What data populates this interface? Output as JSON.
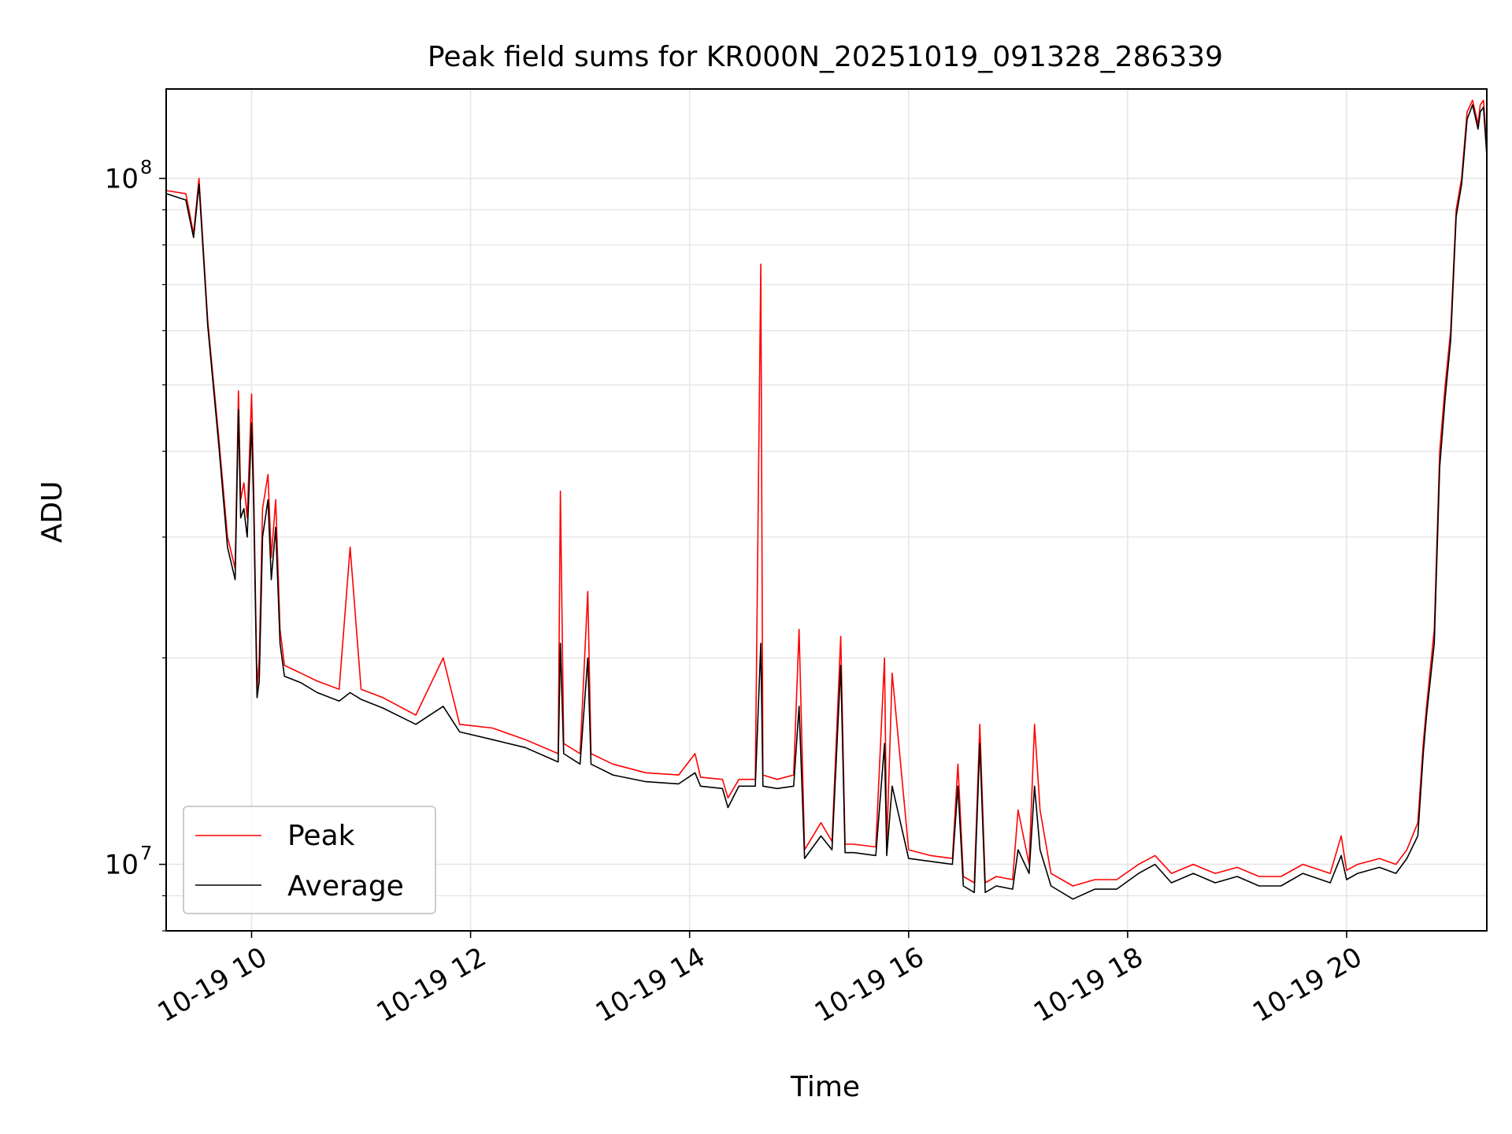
{
  "chart_data": {
    "type": "line",
    "title": "Peak field sums for KR000N_20251019_091328_286339",
    "xlabel": "Time",
    "ylabel": "ADU",
    "y_scale": "log",
    "ylim": [
      8000000,
      135000000
    ],
    "xlim_hours": [
      9.22,
      21.28
    ],
    "grid": true,
    "legend_position": "lower-left",
    "x_ticks": [
      {
        "hour": 10,
        "label": "10-19 10"
      },
      {
        "hour": 12,
        "label": "10-19 12"
      },
      {
        "hour": 14,
        "label": "10-19 14"
      },
      {
        "hour": 16,
        "label": "10-19 16"
      },
      {
        "hour": 18,
        "label": "10-19 18"
      },
      {
        "hour": 20,
        "label": "10-19 20"
      }
    ],
    "y_ticks": [
      {
        "value": 10000000,
        "base": "10",
        "exp": "7"
      },
      {
        "value": 100000000,
        "base": "10",
        "exp": "8"
      }
    ],
    "series": [
      {
        "name": "Peak",
        "color": "#ff0000",
        "x": [
          9.22,
          9.4,
          9.47,
          9.52,
          9.6,
          9.7,
          9.78,
          9.85,
          9.88,
          9.9,
          9.93,
          9.96,
          10.0,
          10.02,
          10.05,
          10.07,
          10.1,
          10.15,
          10.18,
          10.22,
          10.26,
          10.3,
          10.45,
          10.6,
          10.8,
          10.9,
          11.0,
          11.2,
          11.5,
          11.75,
          11.9,
          12.2,
          12.5,
          12.8,
          12.82,
          12.85,
          13.0,
          13.07,
          13.1,
          13.3,
          13.6,
          13.9,
          14.05,
          14.1,
          14.3,
          14.35,
          14.45,
          14.6,
          14.65,
          14.67,
          14.8,
          14.95,
          15.0,
          15.05,
          15.2,
          15.3,
          15.38,
          15.42,
          15.5,
          15.7,
          15.78,
          15.8,
          15.85,
          16.0,
          16.2,
          16.4,
          16.45,
          16.5,
          16.6,
          16.65,
          16.7,
          16.8,
          16.95,
          17.0,
          17.1,
          17.15,
          17.2,
          17.3,
          17.5,
          17.7,
          17.9,
          18.1,
          18.25,
          18.4,
          18.6,
          18.8,
          19.0,
          19.2,
          19.4,
          19.6,
          19.85,
          19.95,
          20.0,
          20.1,
          20.3,
          20.45,
          20.55,
          20.65,
          20.7,
          20.73,
          20.8,
          20.85,
          20.9,
          20.95,
          21.0,
          21.05,
          21.1,
          21.15,
          21.2,
          21.22,
          21.25,
          21.28
        ],
        "y": [
          96000000,
          95000000,
          83000000,
          100000000,
          62000000,
          42000000,
          30000000,
          27000000,
          49000000,
          34000000,
          36000000,
          32000000,
          48500000,
          35000000,
          18000000,
          20000000,
          33000000,
          37000000,
          28000000,
          34000000,
          22000000,
          19500000,
          19000000,
          18500000,
          18000000,
          29000000,
          18000000,
          17500000,
          16500000,
          20000000,
          16000000,
          15800000,
          15200000,
          14500000,
          35000000,
          15000000,
          14500000,
          25000000,
          14500000,
          14000000,
          13600000,
          13500000,
          14500000,
          13400000,
          13300000,
          12500000,
          13300000,
          13300000,
          75000000,
          13500000,
          13300000,
          13500000,
          22000000,
          10500000,
          11500000,
          10800000,
          21500000,
          10700000,
          10700000,
          10600000,
          20000000,
          10600000,
          19000000,
          10500000,
          10300000,
          10200000,
          14000000,
          9600000,
          9400000,
          16000000,
          9400000,
          9600000,
          9500000,
          12000000,
          10000000,
          16000000,
          12000000,
          9700000,
          9300000,
          9500000,
          9500000,
          10000000,
          10300000,
          9700000,
          10000000,
          9700000,
          9900000,
          9600000,
          9600000,
          10000000,
          9700000,
          11000000,
          9800000,
          10000000,
          10200000,
          10000000,
          10500000,
          11500000,
          15000000,
          17000000,
          22000000,
          40000000,
          50000000,
          60000000,
          90000000,
          100000000,
          125000000,
          130000000,
          120000000,
          128000000,
          130000000,
          110000000
        ]
      },
      {
        "name": "Average",
        "color": "#000000",
        "x": [
          9.22,
          9.4,
          9.47,
          9.52,
          9.6,
          9.7,
          9.78,
          9.85,
          9.88,
          9.9,
          9.93,
          9.96,
          10.0,
          10.02,
          10.05,
          10.07,
          10.1,
          10.15,
          10.18,
          10.22,
          10.26,
          10.3,
          10.45,
          10.6,
          10.8,
          10.9,
          11.0,
          11.2,
          11.5,
          11.75,
          11.9,
          12.2,
          12.5,
          12.8,
          12.82,
          12.85,
          13.0,
          13.07,
          13.1,
          13.3,
          13.6,
          13.9,
          14.05,
          14.1,
          14.3,
          14.35,
          14.45,
          14.6,
          14.65,
          14.67,
          14.8,
          14.95,
          15.0,
          15.05,
          15.2,
          15.3,
          15.38,
          15.42,
          15.5,
          15.7,
          15.78,
          15.8,
          15.85,
          16.0,
          16.2,
          16.4,
          16.45,
          16.5,
          16.6,
          16.65,
          16.7,
          16.8,
          16.95,
          17.0,
          17.1,
          17.15,
          17.2,
          17.3,
          17.5,
          17.7,
          17.9,
          18.1,
          18.25,
          18.4,
          18.6,
          18.8,
          19.0,
          19.2,
          19.4,
          19.6,
          19.85,
          19.95,
          20.0,
          20.1,
          20.3,
          20.45,
          20.55,
          20.65,
          20.7,
          20.73,
          20.8,
          20.85,
          20.9,
          20.95,
          21.0,
          21.05,
          21.1,
          21.15,
          21.2,
          21.22,
          21.25,
          21.28
        ],
        "y": [
          95000000,
          93000000,
          82000000,
          98000000,
          61000000,
          41000000,
          29000000,
          26000000,
          46000000,
          32000000,
          33000000,
          30000000,
          44000000,
          33000000,
          17500000,
          18500000,
          30000000,
          34000000,
          26000000,
          31000000,
          21000000,
          18800000,
          18400000,
          17800000,
          17300000,
          17800000,
          17400000,
          16900000,
          16000000,
          17000000,
          15600000,
          15200000,
          14800000,
          14100000,
          21000000,
          14500000,
          14000000,
          20000000,
          14000000,
          13500000,
          13200000,
          13100000,
          13600000,
          13000000,
          12900000,
          12100000,
          13000000,
          13000000,
          21000000,
          13000000,
          12900000,
          13000000,
          17000000,
          10200000,
          11000000,
          10500000,
          19500000,
          10400000,
          10400000,
          10300000,
          15000000,
          10300000,
          13000000,
          10200000,
          10100000,
          10000000,
          13000000,
          9300000,
          9100000,
          15000000,
          9100000,
          9300000,
          9200000,
          10500000,
          9700000,
          13000000,
          10500000,
          9300000,
          8900000,
          9200000,
          9200000,
          9700000,
          10000000,
          9400000,
          9700000,
          9400000,
          9600000,
          9300000,
          9300000,
          9700000,
          9400000,
          10300000,
          9500000,
          9700000,
          9900000,
          9700000,
          10200000,
          11000000,
          14500000,
          16500000,
          21000000,
          38000000,
          48000000,
          58000000,
          88000000,
          98000000,
          122000000,
          128000000,
          118000000,
          125000000,
          127000000,
          108000000
        ]
      }
    ]
  }
}
